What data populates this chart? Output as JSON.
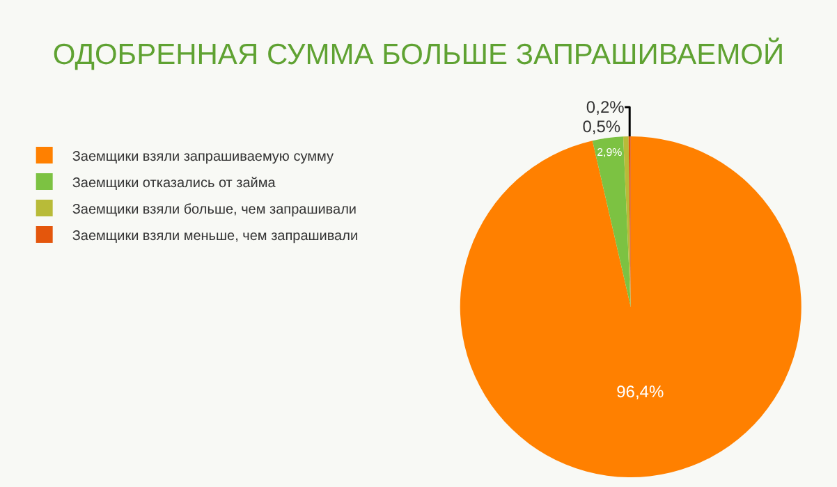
{
  "chart_data": {
    "type": "pie",
    "title": "ОДОБРЕННАЯ СУММА БОЛЬШЕ ЗАПРАШИВАЕМОЙ",
    "categories": [
      "Заемщики взяли запрашиваемую сумму",
      "Заемщики отказались от займа",
      "Заемщики взяли больше, чем запрашивали",
      "Заемщики взяли меньше, чем запрашивали"
    ],
    "values": [
      96.4,
      2.9,
      0.5,
      0.2
    ],
    "value_labels": [
      "96,4%",
      "2,9%",
      "0,5%",
      "0,2%"
    ],
    "colors": [
      "#ff8000",
      "#7cc242",
      "#b8bb38",
      "#e4560c"
    ],
    "legend": "left"
  }
}
